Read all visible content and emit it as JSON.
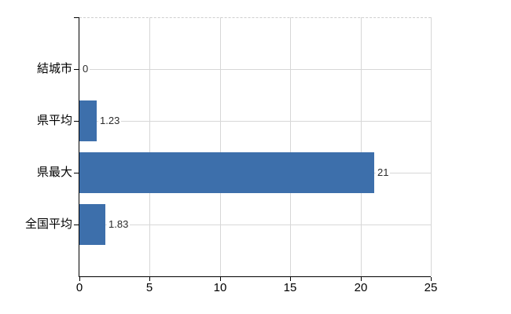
{
  "chart_data": {
    "type": "bar",
    "orientation": "horizontal",
    "title": "",
    "categories": [
      "結城市",
      "県平均",
      "県最大",
      "全国平均"
    ],
    "values": [
      0,
      1.23,
      21,
      1.83
    ],
    "value_labels": [
      "0",
      "1.23",
      "21",
      "1.83"
    ],
    "xlim": [
      0,
      25
    ],
    "xticks": [
      0,
      5,
      10,
      15,
      20,
      25
    ],
    "grid": true,
    "legend": false,
    "colors": {
      "bar": "#3D6FAB",
      "axis": "#000000",
      "gridline": "#d7d7d7",
      "top_border": "#cfcfcf",
      "label_text": "#000000",
      "value_text": "#2b2b2b",
      "background": "#ffffff"
    }
  }
}
